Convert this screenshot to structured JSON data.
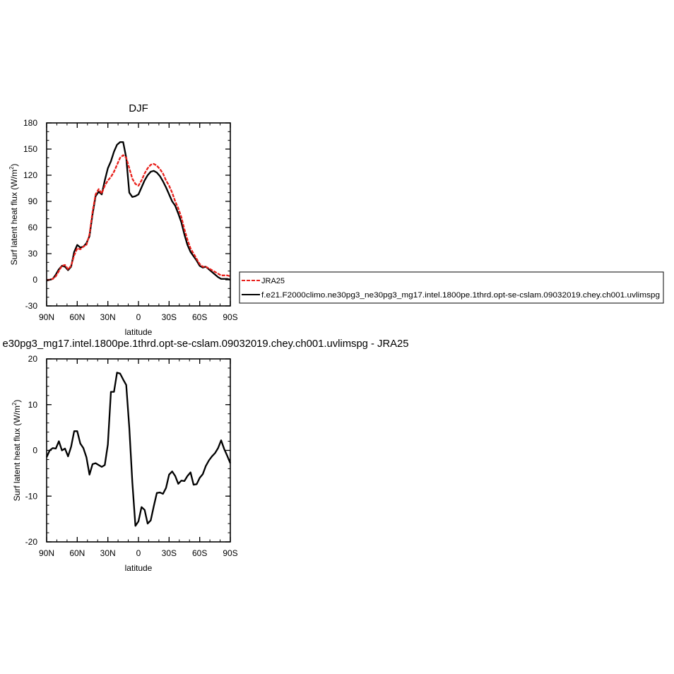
{
  "chart_data": [
    {
      "type": "line",
      "title": "DJF",
      "xlabel": "latitude",
      "ylabel_main": "Surf latent heat flux (W/m",
      "ylabel_sup": "2",
      "ylabel_close": ")",
      "xlim": [
        90,
        -90
      ],
      "ylim": [
        -30,
        180
      ],
      "x_ticks": [
        {
          "v": 90,
          "label": "90N"
        },
        {
          "v": 60,
          "label": "60N"
        },
        {
          "v": 30,
          "label": "30N"
        },
        {
          "v": 0,
          "label": "0"
        },
        {
          "v": -30,
          "label": "30S"
        },
        {
          "v": -60,
          "label": "60S"
        },
        {
          "v": -90,
          "label": "90S"
        }
      ],
      "y_ticks": [
        -30,
        0,
        30,
        60,
        90,
        120,
        150,
        180
      ],
      "x": [
        90,
        87,
        84,
        81,
        78,
        75,
        72,
        69,
        66,
        63,
        60,
        57,
        54,
        51,
        48,
        45,
        42,
        39,
        36,
        33,
        30,
        27,
        24,
        21,
        18,
        15,
        12,
        9,
        6,
        3,
        0,
        -3,
        -6,
        -9,
        -12,
        -15,
        -18,
        -21,
        -24,
        -27,
        -30,
        -33,
        -36,
        -39,
        -42,
        -45,
        -48,
        -51,
        -54,
        -57,
        -60,
        -63,
        -66,
        -69,
        -72,
        -75,
        -78,
        -81,
        -84,
        -87,
        -90
      ],
      "series": [
        {
          "name": "JRA25",
          "color": "#e8201b",
          "dash": true,
          "values": [
            0,
            0,
            1,
            4,
            10,
            16,
            17,
            12,
            16,
            28,
            36,
            35,
            38,
            40,
            52,
            78,
            98,
            104,
            99,
            108,
            114,
            118,
            124,
            132,
            140,
            143,
            140,
            128,
            116,
            110,
            108,
            114,
            122,
            128,
            132,
            133,
            131,
            127,
            122,
            114,
            108,
            100,
            90,
            82,
            72,
            58,
            46,
            36,
            30,
            24,
            18,
            15,
            15,
            13,
            11,
            9,
            7,
            5,
            5,
            5,
            4
          ]
        },
        {
          "name": "f.e21.F2000climo.ne30pg3_ne30pg3_mg17.intel.1800pe.1thrd.opt-se-cslam.09032019.chey.ch001.uvlimspg",
          "color": "#000000",
          "dash": false,
          "values": [
            -1,
            0,
            1,
            6,
            12,
            16,
            15,
            11,
            15,
            32,
            40,
            37,
            38,
            42,
            50,
            75,
            96,
            101,
            98,
            114,
            128,
            136,
            147,
            155,
            158,
            158,
            140,
            100,
            95,
            96,
            98,
            106,
            114,
            120,
            124,
            125,
            123,
            119,
            113,
            106,
            98,
            90,
            85,
            76,
            66,
            52,
            40,
            32,
            27,
            22,
            16,
            14,
            15,
            12,
            9,
            6,
            3,
            1,
            1,
            1,
            0
          ]
        }
      ],
      "grid": false,
      "legend_position": "right"
    },
    {
      "type": "line",
      "title": "e30pg3_mg17.intel.1800pe.1thrd.opt-se-cslam.09032019.chey.ch001.uvlimspg - JRA25",
      "xlabel": "latitude",
      "ylabel_main": "Surf latent heat flux (W/m",
      "ylabel_sup": "2",
      "ylabel_close": ")",
      "xlim": [
        90,
        -90
      ],
      "ylim": [
        -20,
        20
      ],
      "x_ticks": [
        {
          "v": 90,
          "label": "90N"
        },
        {
          "v": 60,
          "label": "60N"
        },
        {
          "v": 30,
          "label": "30N"
        },
        {
          "v": 0,
          "label": "0"
        },
        {
          "v": -30,
          "label": "30S"
        },
        {
          "v": -60,
          "label": "60S"
        },
        {
          "v": -90,
          "label": "90S"
        }
      ],
      "y_ticks": [
        -20,
        -10,
        0,
        10,
        20
      ],
      "x": [
        90,
        87,
        84,
        81,
        78,
        75,
        72,
        69,
        66,
        63,
        60,
        57,
        54,
        51,
        48,
        45,
        42,
        39,
        36,
        33,
        30,
        27,
        24,
        21,
        18,
        15,
        12,
        9,
        6,
        3,
        0,
        -3,
        -6,
        -9,
        -12,
        -15,
        -18,
        -21,
        -24,
        -27,
        -30,
        -33,
        -36,
        -39,
        -42,
        -45,
        -48,
        -51,
        -54,
        -57,
        -60,
        -63,
        -66,
        -69,
        -72,
        -75,
        -78,
        -81,
        -84,
        -87,
        -90
      ],
      "series": [
        {
          "name": "",
          "color": "#000000",
          "dash": false,
          "values": [
            -1.5,
            0,
            0.5,
            0.4,
            2,
            0,
            0.4,
            -1.3,
            0.8,
            4.2,
            4.2,
            1.5,
            0.5,
            -1.5,
            -5.3,
            -3,
            -2.8,
            -3.2,
            -3.6,
            -3.2,
            1.3,
            12.8,
            12.8,
            17,
            16.8,
            15.5,
            14.3,
            5,
            -7,
            -16.5,
            -15.5,
            -12.4,
            -13,
            -16,
            -15.3,
            -12.2,
            -9.3,
            -9.2,
            -9.5,
            -8.2,
            -5.3,
            -4.6,
            -5.6,
            -7.3,
            -6.6,
            -6.7,
            -5.6,
            -4.8,
            -7.5,
            -7.4,
            -6,
            -5.2,
            -3.4,
            -2.2,
            -1.3,
            -0.6,
            0.5,
            2.2,
            0.3,
            -1.2,
            -2.8
          ]
        }
      ],
      "grid": false
    }
  ]
}
